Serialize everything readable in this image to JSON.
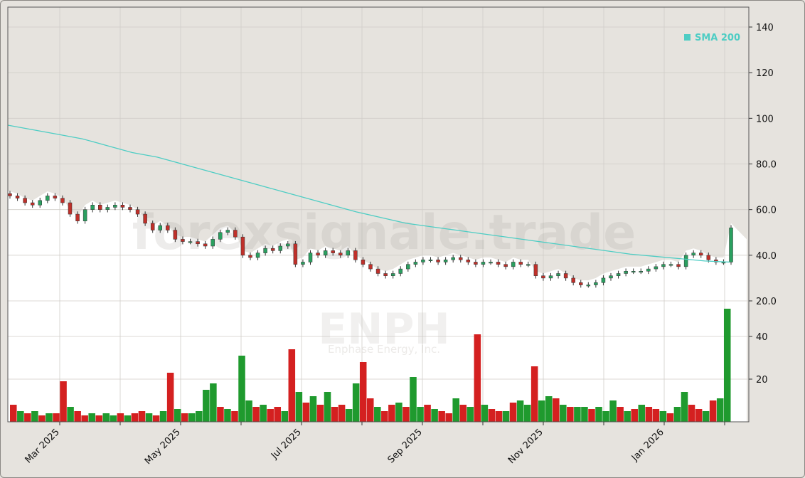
{
  "chart_data": {
    "type": "candlestick",
    "ticker": "ENPH",
    "company": "Enphase Energy, Inc.",
    "watermark": "forexsignale.trade",
    "legend": [
      {
        "label": "SMA 200",
        "color": "#4ecdc4"
      }
    ],
    "price_axis": {
      "ticks": [
        "140",
        "120",
        "100",
        "80.0",
        "60.0",
        "40.0",
        "20.0"
      ],
      "values": [
        140,
        120,
        100,
        80,
        60,
        40,
        20
      ],
      "ylim": [
        15,
        148
      ]
    },
    "volume_axis": {
      "ticks": [
        "40",
        "20"
      ],
      "values": [
        40,
        20
      ],
      "ylim": [
        0,
        50
      ]
    },
    "x_ticks": [
      "Mar 2025",
      "May 2025",
      "Jul 2025",
      "Sep 2025",
      "Nov 2025",
      "Jan 2026"
    ],
    "colors": {
      "up": "#1f9a2e",
      "down": "#d42020",
      "sma": "#4ecdc4",
      "background": "#e6e3de",
      "grid": "#d0cdc8"
    },
    "close_path": [
      66,
      65,
      63,
      62,
      64,
      66,
      65,
      63,
      58,
      55,
      60,
      62,
      60,
      61,
      62,
      61,
      60,
      58,
      54,
      51,
      53,
      51,
      47,
      46,
      46,
      45,
      44,
      47,
      50,
      51,
      48,
      40,
      39,
      41,
      43,
      42,
      44,
      45,
      36,
      37,
      41,
      40,
      42,
      41,
      40,
      42,
      38,
      36,
      34,
      32,
      31,
      32,
      34,
      36,
      37,
      38,
      38,
      37,
      38,
      39,
      38,
      37,
      36,
      37,
      37,
      36,
      35,
      37,
      36,
      36,
      31,
      30,
      31,
      32,
      30,
      28,
      27,
      27,
      28,
      30,
      31,
      32,
      33,
      33,
      33,
      34,
      35,
      36,
      36,
      35,
      40,
      41,
      40,
      38,
      37,
      37,
      52
    ],
    "sma_path": [
      97,
      95,
      93,
      91,
      88,
      85,
      83,
      80,
      77,
      74,
      71,
      68,
      65,
      62,
      59,
      56.5,
      54,
      52.5,
      51,
      49.5,
      48,
      46.5,
      45,
      43.5,
      42,
      40.5,
      39.5,
      38.5,
      37.5,
      37
    ],
    "volume": [
      8,
      5,
      4,
      5,
      3,
      4,
      4,
      19,
      7,
      5,
      3,
      4,
      3,
      4,
      3,
      4,
      3,
      4,
      5,
      4,
      3,
      5,
      23,
      6,
      4,
      4,
      5,
      15,
      18,
      7,
      6,
      5,
      31,
      10,
      7,
      8,
      6,
      7,
      5,
      34,
      14,
      9,
      12,
      8,
      14,
      7,
      8,
      6,
      18,
      28,
      11,
      7,
      5,
      8,
      9,
      7,
      21,
      7,
      8,
      6,
      5,
      4,
      11,
      8,
      7,
      41,
      8,
      6,
      5,
      5,
      9,
      10,
      8,
      26,
      10,
      12,
      11,
      8,
      7,
      7,
      7,
      6,
      7,
      5,
      10,
      7,
      5,
      6,
      8,
      7,
      6,
      5,
      4,
      7,
      14,
      8,
      6,
      5,
      10,
      11,
      53
    ],
    "volume_up": [
      false,
      true,
      false,
      true,
      false,
      true,
      false,
      false,
      true,
      false,
      false,
      true,
      false,
      true,
      true,
      false,
      true,
      false,
      false,
      true,
      false,
      true,
      false,
      true,
      false,
      true,
      true,
      true,
      true,
      false,
      true,
      false,
      true,
      true,
      false,
      true,
      false,
      false,
      true,
      false,
      true,
      false,
      true,
      false,
      true,
      false,
      false,
      true,
      true,
      false,
      false,
      true,
      false,
      false,
      true,
      false,
      true,
      true,
      false,
      true,
      false,
      false,
      true,
      false,
      true,
      false,
      true,
      false,
      false,
      true,
      false,
      true,
      true,
      false,
      true,
      true,
      false,
      true,
      false,
      true,
      true,
      false,
      true,
      true,
      true,
      false,
      true,
      false,
      true,
      false,
      false,
      true,
      false,
      true,
      true,
      false,
      false,
      true,
      false,
      true,
      true
    ]
  }
}
